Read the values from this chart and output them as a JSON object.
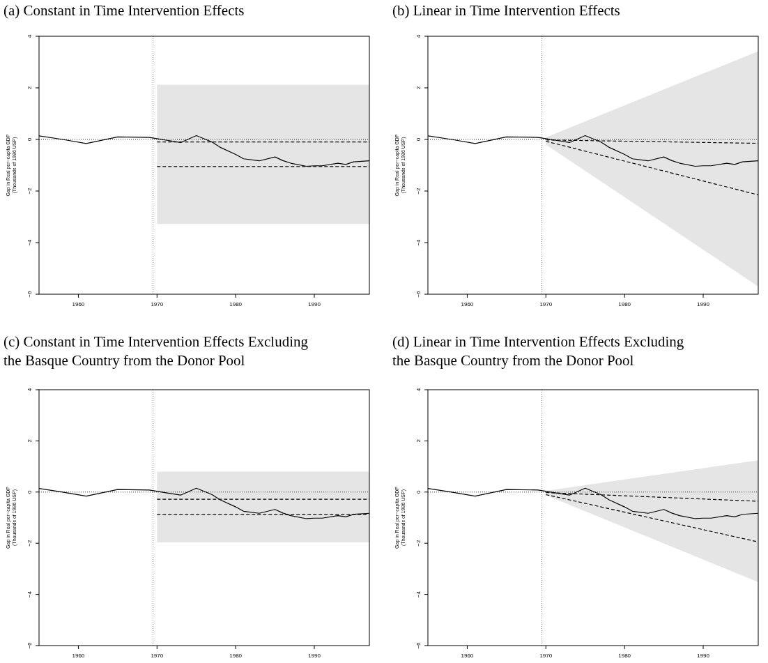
{
  "chart_data": [
    {
      "type": "line",
      "title": "(a) Constant in Time Intervention Effects",
      "ylabel": "Gap in Real per−capita GDP\n(Thousands of 1986 USP)",
      "xlim": [
        1955,
        1997
      ],
      "ylim": [
        -6,
        4
      ],
      "xticks": [
        1960,
        1970,
        1980,
        1990
      ],
      "yticks": [
        -6,
        -4,
        -2,
        0,
        2,
        4
      ],
      "ref_lines": [
        {
          "axis": "x",
          "value": 1969.5,
          "line_style": "dotted",
          "color": "#555555"
        },
        {
          "axis": "y",
          "value": 0,
          "line_style": "dotted",
          "color": "#000000"
        }
      ],
      "series": [
        {
          "color": "#000000",
          "line_style": "dashed",
          "x": [
            1970,
            1997
          ],
          "values": [
            -0.1,
            -0.1
          ],
          "lower": [
            -3.28,
            -3.28
          ],
          "upper": [
            2.12,
            2.12
          ]
        },
        {
          "color": "#000000",
          "line_style": "dashed",
          "x": [
            1970,
            1997
          ],
          "values": [
            -1.05,
            -1.05
          ]
        },
        {
          "color": "#000000",
          "line_style": "solid",
          "x": [
            1955,
            1958,
            1961,
            1965,
            1969,
            1970,
            1971,
            1973,
            1975,
            1977,
            1978,
            1980,
            1981,
            1983,
            1985,
            1986,
            1987,
            1989,
            1990,
            1991,
            1993,
            1994,
            1995,
            1997
          ],
          "values": [
            0.14,
            0.0,
            -0.16,
            0.1,
            0.08,
            0.03,
            -0.02,
            -0.12,
            0.15,
            -0.1,
            -0.3,
            -0.58,
            -0.75,
            -0.83,
            -0.68,
            -0.82,
            -0.92,
            -1.04,
            -1.02,
            -1.02,
            -0.92,
            -0.97,
            -0.87,
            -0.83
          ]
        }
      ]
    },
    {
      "type": "line",
      "title": "(b) Linear in Time Intervention Effects",
      "ylabel": "Gap in Real per−capita GDP\n(Thousands of 1986 USP)",
      "xlim": [
        1955,
        1997
      ],
      "ylim": [
        -6,
        4
      ],
      "xticks": [
        1960,
        1970,
        1980,
        1990
      ],
      "yticks": [
        -6,
        -4,
        -2,
        0,
        2,
        4
      ],
      "ref_lines": [
        {
          "axis": "x",
          "value": 1969.5,
          "line_style": "dotted",
          "color": "#555555"
        },
        {
          "axis": "y",
          "value": 0,
          "line_style": "dotted",
          "color": "#000000"
        }
      ],
      "series": [
        {
          "color": "#000000",
          "line_style": "dashed",
          "x": [
            1970,
            1997
          ],
          "values": [
            -0.02,
            -0.15
          ],
          "lower": [
            -0.2,
            -5.7
          ],
          "upper": [
            0.08,
            3.42
          ]
        },
        {
          "color": "#000000",
          "line_style": "dashed",
          "x": [
            1970,
            1997
          ],
          "values": [
            -0.07,
            -2.15
          ]
        },
        {
          "color": "#000000",
          "line_style": "solid",
          "x": [
            1955,
            1958,
            1961,
            1965,
            1969,
            1970,
            1971,
            1973,
            1975,
            1977,
            1978,
            1980,
            1981,
            1983,
            1985,
            1986,
            1987,
            1989,
            1990,
            1991,
            1993,
            1994,
            1995,
            1997
          ],
          "values": [
            0.14,
            0.0,
            -0.16,
            0.1,
            0.08,
            0.03,
            -0.02,
            -0.12,
            0.15,
            -0.1,
            -0.3,
            -0.58,
            -0.75,
            -0.83,
            -0.68,
            -0.82,
            -0.92,
            -1.04,
            -1.02,
            -1.02,
            -0.92,
            -0.97,
            -0.87,
            -0.83
          ]
        }
      ]
    },
    {
      "type": "line",
      "title": "(c) Constant in Time Intervention Effects Excluding the Basque Country from the Donor Pool",
      "ylabel": "Gap in Real per−capita GDP\n(Thousands of 1986 USP)",
      "xlim": [
        1955,
        1997
      ],
      "ylim": [
        -6,
        4
      ],
      "xticks": [
        1960,
        1970,
        1980,
        1990
      ],
      "yticks": [
        -6,
        -4,
        -2,
        0,
        2,
        4
      ],
      "ref_lines": [
        {
          "axis": "x",
          "value": 1969.5,
          "line_style": "dotted",
          "color": "#555555"
        },
        {
          "axis": "y",
          "value": 0,
          "line_style": "dotted",
          "color": "#000000"
        }
      ],
      "series": [
        {
          "color": "#000000",
          "line_style": "dashed",
          "x": [
            1970,
            1997
          ],
          "values": [
            -0.28,
            -0.28
          ],
          "lower": [
            -1.97,
            -1.97
          ],
          "upper": [
            0.8,
            0.8
          ]
        },
        {
          "color": "#000000",
          "line_style": "dashed",
          "x": [
            1970,
            1997
          ],
          "values": [
            -0.88,
            -0.88
          ]
        },
        {
          "color": "#000000",
          "line_style": "solid",
          "x": [
            1955,
            1958,
            1961,
            1965,
            1969,
            1970,
            1971,
            1973,
            1975,
            1977,
            1978,
            1980,
            1981,
            1983,
            1985,
            1986,
            1987,
            1989,
            1990,
            1991,
            1993,
            1994,
            1995,
            1997
          ],
          "values": [
            0.14,
            0.0,
            -0.16,
            0.1,
            0.08,
            0.03,
            -0.02,
            -0.12,
            0.15,
            -0.1,
            -0.3,
            -0.58,
            -0.75,
            -0.83,
            -0.68,
            -0.82,
            -0.92,
            -1.04,
            -1.02,
            -1.02,
            -0.92,
            -0.97,
            -0.87,
            -0.83
          ]
        }
      ]
    },
    {
      "type": "line",
      "title": "(d) Linear in Time Intervention Effects Excluding the Basque Country from the Donor Pool",
      "ylabel": "Gap in Real per−capita GDP\n(Thousands of 1986 USP)",
      "xlim": [
        1955,
        1997
      ],
      "ylim": [
        -6,
        4
      ],
      "xticks": [
        1960,
        1970,
        1980,
        1990
      ],
      "yticks": [
        -6,
        -4,
        -2,
        0,
        2,
        4
      ],
      "ref_lines": [
        {
          "axis": "x",
          "value": 1969.5,
          "line_style": "dotted",
          "color": "#555555"
        },
        {
          "axis": "y",
          "value": 0,
          "line_style": "dotted",
          "color": "#000000"
        }
      ],
      "series": [
        {
          "color": "#000000",
          "line_style": "dashed",
          "x": [
            1970,
            1997
          ],
          "values": [
            -0.02,
            -0.36
          ],
          "lower": [
            -0.12,
            -3.52
          ],
          "upper": [
            0.05,
            1.24
          ]
        },
        {
          "color": "#000000",
          "line_style": "dashed",
          "x": [
            1970,
            1997
          ],
          "values": [
            -0.1,
            -1.95
          ]
        },
        {
          "color": "#000000",
          "line_style": "solid",
          "x": [
            1955,
            1958,
            1961,
            1965,
            1969,
            1970,
            1971,
            1973,
            1975,
            1977,
            1978,
            1980,
            1981,
            1983,
            1985,
            1986,
            1987,
            1989,
            1990,
            1991,
            1993,
            1994,
            1995,
            1997
          ],
          "values": [
            0.14,
            0.0,
            -0.16,
            0.1,
            0.08,
            0.03,
            -0.02,
            -0.12,
            0.15,
            -0.1,
            -0.3,
            -0.58,
            -0.75,
            -0.83,
            -0.68,
            -0.82,
            -0.92,
            -1.04,
            -1.02,
            -1.02,
            -0.92,
            -0.97,
            -0.87,
            -0.83
          ]
        }
      ]
    }
  ]
}
